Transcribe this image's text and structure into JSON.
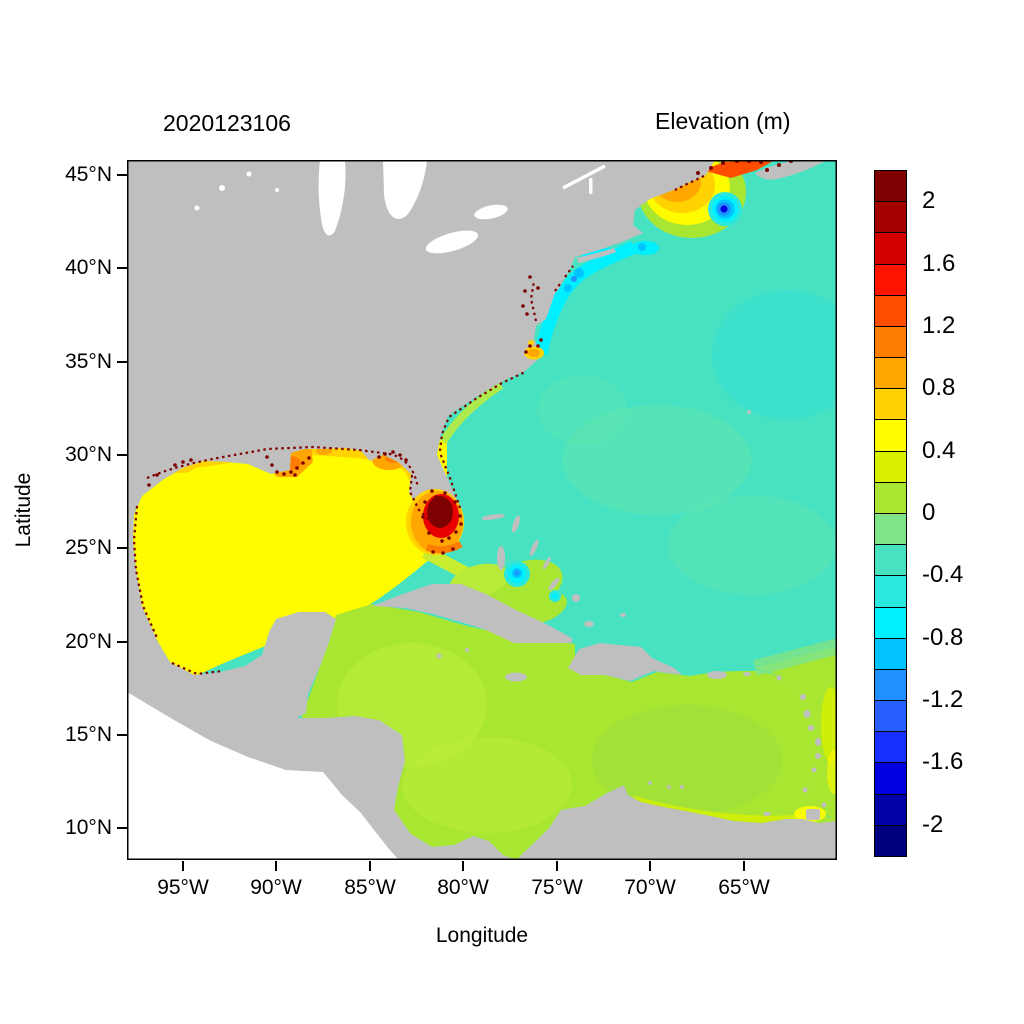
{
  "header": {
    "date_label": "2020123106",
    "plot_title": "Elevation (m)"
  },
  "axes": {
    "x_label": "Longitude",
    "y_label": "Latitude",
    "x_ticks": [
      "95°W",
      "90°W",
      "85°W",
      "80°W",
      "75°W",
      "70°W",
      "65°W"
    ],
    "y_ticks": [
      "45°N",
      "40°N",
      "35°N",
      "30°N",
      "25°N",
      "20°N",
      "15°N",
      "10°N"
    ]
  },
  "colorbar": {
    "title": "Elevation (m)",
    "tick_labels": [
      "2",
      "1.6",
      "1.2",
      "0.8",
      "0.4",
      "0",
      "-0.4",
      "-0.8",
      "-1.2",
      "-1.6",
      "-2"
    ],
    "colors_top_to_bottom": [
      "#7F0000",
      "#A50000",
      "#D40000",
      "#FF1400",
      "#FF4D00",
      "#FF7D00",
      "#FFA600",
      "#FFD200",
      "#FFFC00",
      "#D8F000",
      "#A8E632",
      "#7FE387",
      "#47E3C0",
      "#2BE8DE",
      "#00F0FF",
      "#00C3FF",
      "#1E90FF",
      "#2860FF",
      "#1631FF",
      "#0000E0",
      "#0000A8",
      "#00007F"
    ],
    "value_min": -2,
    "value_max": 2,
    "step": 0.2
  },
  "map_colors": {
    "land": "#BFBFBF",
    "outside_domain": "#FFFFFF",
    "ocean_base": "#47E2C1"
  },
  "chart_data": {
    "type": "heatmap",
    "title": "Elevation (m)",
    "timestamp": "2020123106",
    "xlabel": "Longitude",
    "ylabel": "Latitude",
    "x_range_deg_west": [
      98,
      60
    ],
    "y_range_deg_north": [
      8.3,
      45.8
    ],
    "colorbar_range_m": [
      -2,
      2
    ],
    "colorbar_step_m": 0.2,
    "legend_position": "right",
    "grid": false,
    "regions": [
      {
        "name": "Open Atlantic",
        "approx_elevation_m": -0.3
      },
      {
        "name": "Gulf of Mexico",
        "approx_elevation_m": 0.5
      },
      {
        "name": "Caribbean Sea",
        "approx_elevation_m": 0.15
      },
      {
        "name": "Northern Gulf coast (Louisiana - Florida panhandle)",
        "approx_elevation_m": 0.9
      },
      {
        "name": "Southwest Florida / Everglades hotspot",
        "approx_elevation_m": 2.0
      },
      {
        "name": "Florida Straits / Bahamas banks",
        "approx_elevation_m": 0.3
      },
      {
        "name": "Bahamas local low spot",
        "approx_elevation_m": -0.9
      },
      {
        "name": "Mid-Atlantic coastal band (Long Island - Chesapeake)",
        "approx_elevation_m": -0.7
      },
      {
        "name": "Gulf of Maine",
        "approx_elevation_m": 0.8
      },
      {
        "name": "Bay of Fundy coast",
        "approx_elevation_m": 1.6
      },
      {
        "name": "Low spot southwest of Nova Scotia",
        "approx_elevation_m": -1.6
      },
      {
        "name": "Coastal estuary speckles (Gulf and SE US coasts)",
        "approx_elevation_m": 2.0
      },
      {
        "name": "Land mask",
        "note": "gray"
      },
      {
        "name": "Outside model domain (Pacific, lower left)",
        "note": "white"
      }
    ]
  }
}
